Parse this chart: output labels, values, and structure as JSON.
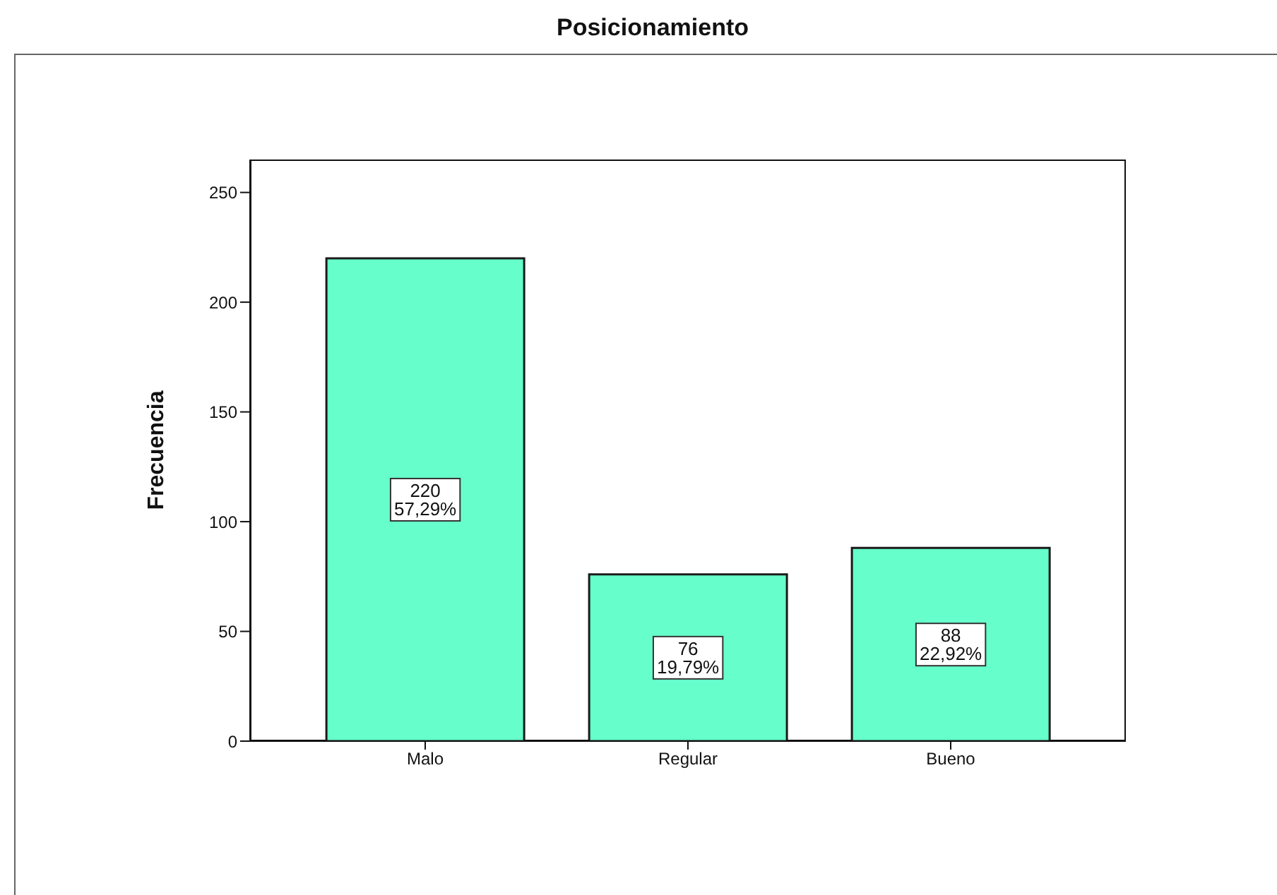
{
  "chart_data": {
    "type": "bar",
    "title": "Posicionamiento",
    "ylabel": "Frecuencia",
    "categories": [
      "Malo",
      "Regular",
      "Bueno"
    ],
    "values": [
      220,
      76,
      88
    ],
    "color": "#66ffcc",
    "value_labels": [
      "220\n57,29%",
      "76\n19,79%",
      "88\n22,92%"
    ],
    "ylim": [
      0,
      265
    ],
    "yticks": [
      0,
      50,
      100,
      150,
      200,
      250
    ]
  }
}
